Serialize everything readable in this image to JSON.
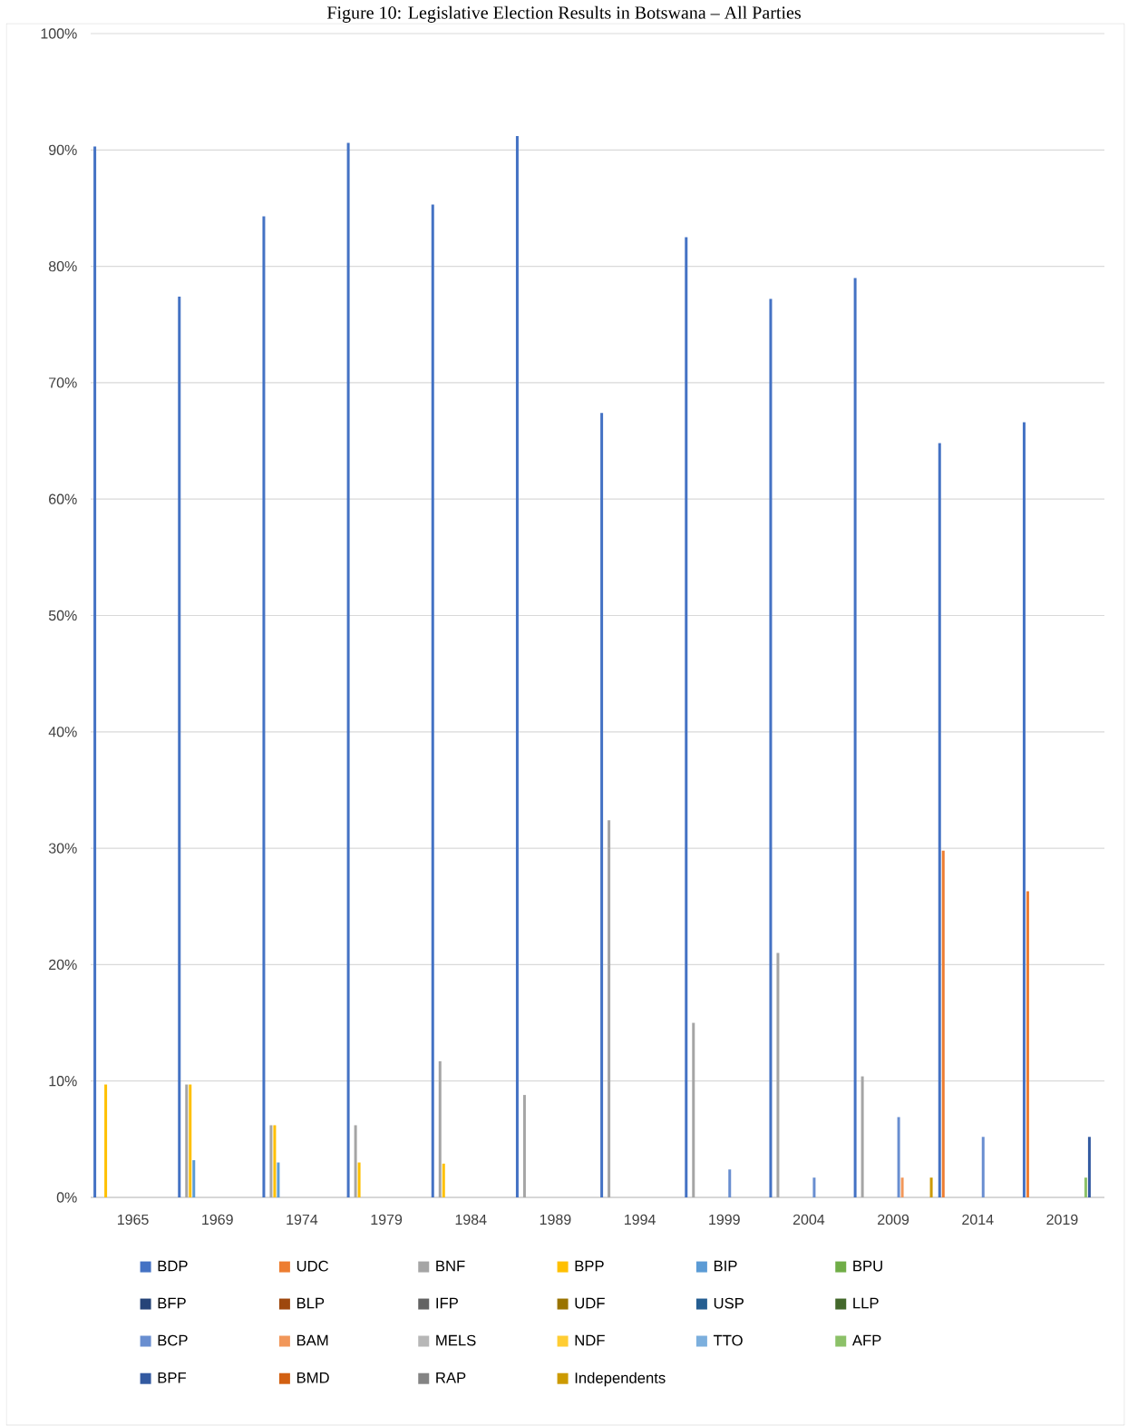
{
  "chart_data": {
    "type": "bar",
    "title": "Figure 10: Legislative Election Results in Botswana – All Parties",
    "categories": [
      "1965",
      "1969",
      "1974",
      "1979",
      "1984",
      "1989",
      "1994",
      "1999",
      "2004",
      "2009",
      "2014",
      "2019"
    ],
    "ylim": [
      0,
      100
    ],
    "yticks": [
      {
        "value": 0,
        "label": "0%"
      },
      {
        "value": 10,
        "label": "10%"
      },
      {
        "value": 20,
        "label": "20%"
      },
      {
        "value": 30,
        "label": "30%"
      },
      {
        "value": 40,
        "label": "40%"
      },
      {
        "value": 50,
        "label": "50%"
      },
      {
        "value": 60,
        "label": "60%"
      },
      {
        "value": 70,
        "label": "70%"
      },
      {
        "value": 80,
        "label": "80%"
      },
      {
        "value": 90,
        "label": "90%"
      },
      {
        "value": 100,
        "label": "100%"
      }
    ],
    "grid": "y",
    "legend": "bottom",
    "series": [
      {
        "name": "BDP",
        "color": "#4472c4",
        "values": [
          90.3,
          77.4,
          84.3,
          90.6,
          85.3,
          91.2,
          67.4,
          82.5,
          77.2,
          79.0,
          64.8,
          66.6
        ]
      },
      {
        "name": "UDC",
        "color": "#ed7d31",
        "values": [
          null,
          null,
          null,
          null,
          null,
          null,
          null,
          null,
          null,
          null,
          29.8,
          26.3
        ]
      },
      {
        "name": "BNF",
        "color": "#a5a5a5",
        "values": [
          null,
          9.7,
          6.2,
          6.2,
          11.7,
          8.8,
          32.4,
          15.0,
          21.0,
          10.4,
          null,
          null
        ]
      },
      {
        "name": "BPP",
        "color": "#ffc000",
        "values": [
          9.7,
          9.7,
          6.2,
          3.0,
          2.9,
          null,
          null,
          null,
          null,
          null,
          null,
          null
        ]
      },
      {
        "name": "BIP",
        "color": "#5b9bd5",
        "values": [
          null,
          3.2,
          3.0,
          null,
          null,
          null,
          null,
          null,
          null,
          null,
          null,
          null
        ]
      },
      {
        "name": "BPU",
        "color": "#70ad47",
        "values": [
          null,
          null,
          null,
          null,
          null,
          null,
          null,
          null,
          null,
          null,
          null,
          null
        ]
      },
      {
        "name": "BFP",
        "color": "#264478",
        "values": [
          null,
          null,
          null,
          null,
          null,
          null,
          null,
          null,
          null,
          null,
          null,
          null
        ]
      },
      {
        "name": "BLP",
        "color": "#9e480e",
        "values": [
          null,
          null,
          null,
          null,
          null,
          null,
          null,
          null,
          null,
          null,
          null,
          null
        ]
      },
      {
        "name": "IFP",
        "color": "#636363",
        "values": [
          null,
          null,
          null,
          null,
          null,
          null,
          null,
          null,
          null,
          null,
          null,
          null
        ]
      },
      {
        "name": "UDF",
        "color": "#997300",
        "values": [
          null,
          null,
          null,
          null,
          null,
          null,
          null,
          null,
          null,
          null,
          null,
          null
        ]
      },
      {
        "name": "USP",
        "color": "#255e91",
        "values": [
          null,
          null,
          null,
          null,
          null,
          null,
          null,
          null,
          null,
          null,
          null,
          null
        ]
      },
      {
        "name": "LLP",
        "color": "#43682b",
        "values": [
          null,
          null,
          null,
          null,
          null,
          null,
          null,
          null,
          null,
          null,
          null,
          null
        ]
      },
      {
        "name": "BCP",
        "color": "#698ed0",
        "values": [
          null,
          null,
          null,
          null,
          null,
          null,
          null,
          2.4,
          1.7,
          6.9,
          5.2,
          null
        ]
      },
      {
        "name": "BAM",
        "color": "#f1975a",
        "values": [
          null,
          null,
          null,
          null,
          null,
          null,
          null,
          null,
          null,
          1.7,
          null,
          null
        ]
      },
      {
        "name": "MELS",
        "color": "#b7b7b7",
        "values": [
          null,
          null,
          null,
          null,
          null,
          null,
          null,
          null,
          null,
          null,
          null,
          null
        ]
      },
      {
        "name": "NDF",
        "color": "#ffcd33",
        "values": [
          null,
          null,
          null,
          null,
          null,
          null,
          null,
          null,
          null,
          null,
          null,
          null
        ]
      },
      {
        "name": "TTO",
        "color": "#7cafdd",
        "values": [
          null,
          null,
          null,
          null,
          null,
          null,
          null,
          null,
          null,
          null,
          null,
          null
        ]
      },
      {
        "name": "AFP",
        "color": "#8cc168",
        "values": [
          null,
          null,
          null,
          null,
          null,
          null,
          null,
          null,
          null,
          null,
          null,
          1.7
        ]
      },
      {
        "name": "BPF",
        "color": "#335aa1",
        "values": [
          null,
          null,
          null,
          null,
          null,
          null,
          null,
          null,
          null,
          null,
          null,
          5.2
        ]
      },
      {
        "name": "BMD",
        "color": "#d26012",
        "values": [
          null,
          null,
          null,
          null,
          null,
          null,
          null,
          null,
          null,
          null,
          null,
          null
        ]
      },
      {
        "name": "RAP",
        "color": "#848484",
        "values": [
          null,
          null,
          null,
          null,
          null,
          null,
          null,
          null,
          null,
          null,
          null,
          null
        ]
      },
      {
        "name": "Independents",
        "color": "#cc9a00",
        "values": [
          null,
          null,
          null,
          null,
          null,
          null,
          null,
          null,
          null,
          1.7,
          null,
          null
        ]
      }
    ]
  }
}
